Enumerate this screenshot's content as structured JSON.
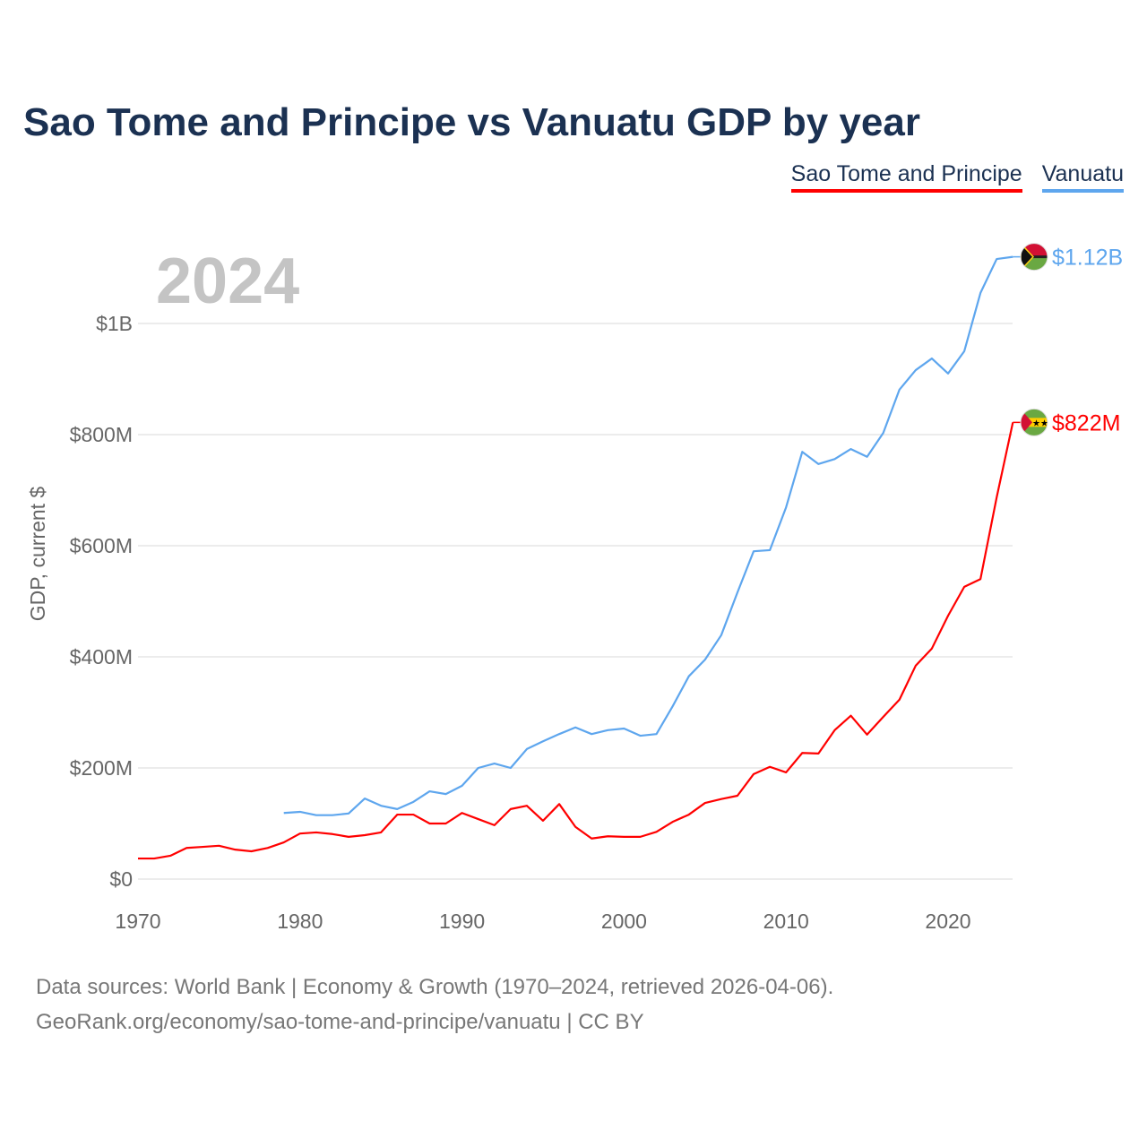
{
  "title": "Sao Tome and Principe vs Vanuatu GDP by year",
  "footer": {
    "line1": "Data sources: World Bank | Economy & Growth (1970–2024, retrieved 2026-04-06).",
    "line2": "GeoRank.org/economy/sao-tome-and-principe/vanuatu | CC BY"
  },
  "chart_data": {
    "type": "line",
    "title": "Sao Tome and Principe vs Vanuatu GDP by year",
    "year_label": "2024",
    "xlabel": "",
    "ylabel": "GDP, current $",
    "xlim": [
      1970,
      2024
    ],
    "ylim": [
      0,
      1120
    ],
    "x_ticks": [
      1970,
      1980,
      1990,
      2000,
      2010,
      2020
    ],
    "y_ticks": [
      {
        "v": 0,
        "label": "$0"
      },
      {
        "v": 200,
        "label": "$200M"
      },
      {
        "v": 400,
        "label": "$400M"
      },
      {
        "v": 600,
        "label": "$600M"
      },
      {
        "v": 800,
        "label": "$800M"
      },
      {
        "v": 1000,
        "label": "$1B"
      }
    ],
    "grid": true,
    "legend": "top-right",
    "units": "million USD",
    "series": [
      {
        "name": "Sao Tome and Principe",
        "color": "#ff0000",
        "start_year": 1970,
        "end_label": "$822M",
        "flag": "sao-tome-flag",
        "values": [
          37,
          37,
          42,
          56,
          58,
          60,
          53,
          50,
          56,
          66,
          82,
          84,
          81,
          76,
          79,
          84,
          116,
          116,
          100,
          100,
          119,
          108,
          97,
          126,
          132,
          105,
          135,
          94,
          73,
          77,
          76,
          76,
          85,
          103,
          116,
          137,
          144,
          150,
          189,
          202,
          192,
          227,
          226,
          268,
          294,
          260,
          292,
          323,
          384,
          415,
          474,
          526,
          540,
          687,
          822
        ]
      },
      {
        "name": "Vanuatu",
        "color": "#5ea6ee",
        "start_year": 1979,
        "end_label": "$1.12B",
        "flag": "vanuatu-flag",
        "values": [
          119,
          121,
          115,
          115,
          118,
          145,
          132,
          126,
          139,
          158,
          153,
          168,
          200,
          208,
          200,
          234,
          248,
          261,
          273,
          261,
          268,
          271,
          258,
          261,
          311,
          365,
          395,
          439,
          516,
          590,
          592,
          669,
          769,
          747,
          756,
          774,
          760,
          803,
          881,
          916,
          937,
          910,
          950,
          1055,
          1116,
          1120
        ]
      }
    ]
  }
}
